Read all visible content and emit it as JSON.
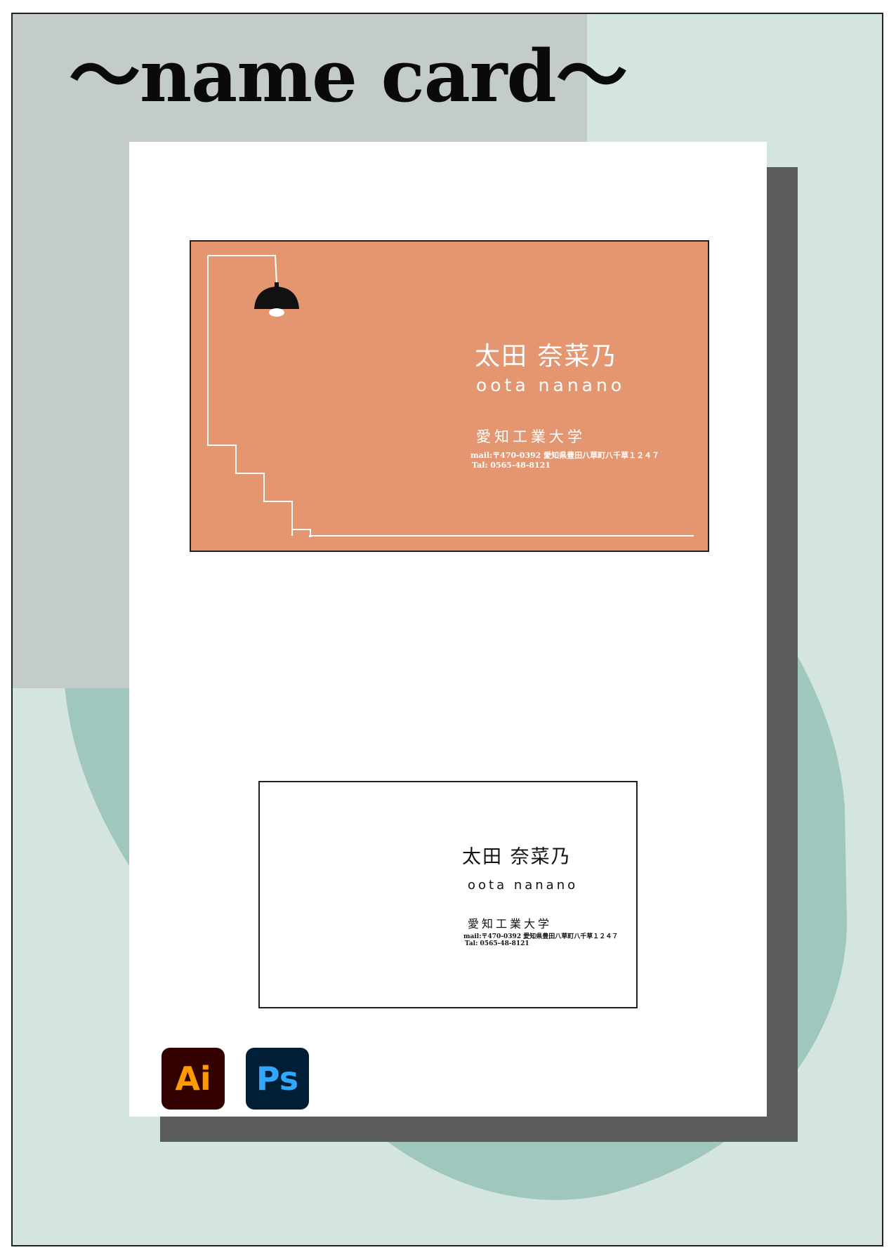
{
  "page": {
    "title": "～name card～",
    "colors": {
      "background": "#d3e5de",
      "blob": "#a0c7bd",
      "panel": "#c4ccc9",
      "shadow": "#5a5d5c",
      "card_orange": "#e39670"
    }
  },
  "orange_card": {
    "name": "太田 奈菜乃",
    "romaji": "oota nanano",
    "university": "愛知工業大学",
    "mail": "mail:〒470-0392 愛知県豊田八草町八千草１２４７",
    "tel": "Tal: 0565-48-8121",
    "illustration": "lamp-icon"
  },
  "white_card": {
    "name": "太田 奈菜乃",
    "romaji": "oota nanano",
    "university": "愛知工業大学",
    "mail": "mail:〒470-0392 愛知県豊田八草町八千草１２４７",
    "tel": "Tal: 0565-48-8121"
  },
  "tools": [
    {
      "label": "Ai",
      "icon": "illustrator-icon",
      "bg": "#330000",
      "fg": "#ff9a00"
    },
    {
      "label": "Ps",
      "icon": "photoshop-icon",
      "bg": "#001e36",
      "fg": "#31a8ff"
    }
  ]
}
